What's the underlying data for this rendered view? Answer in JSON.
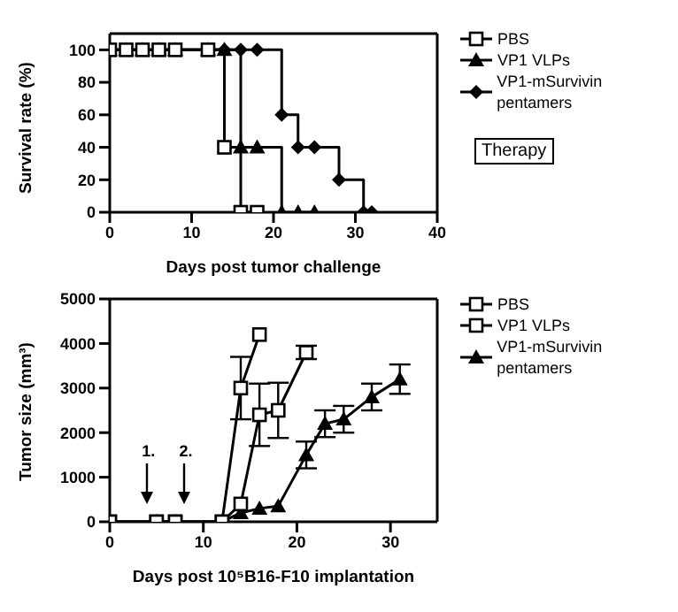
{
  "chart_data": [
    {
      "type": "step",
      "xlabel": "Days post tumor challenge",
      "ylabel": "Survival rate (%)",
      "xlim": [
        0,
        40
      ],
      "xticks": [
        0,
        10,
        20,
        30,
        40
      ],
      "ylim": [
        0,
        110
      ],
      "yticks": [
        0,
        20,
        40,
        60,
        80,
        100
      ],
      "legend": "top right",
      "annotations": [
        "Therapy"
      ],
      "series": [
        {
          "name": "PBS",
          "color": "#000000",
          "marker": "square",
          "x": [
            0,
            2,
            4,
            6,
            8,
            12,
            14,
            16,
            18
          ],
          "values": [
            100,
            100,
            100,
            100,
            100,
            100,
            40,
            0,
            0
          ]
        },
        {
          "name": "VP1 VLPs",
          "color": "#000000",
          "marker": "triangle",
          "x": [
            0,
            2,
            4,
            6,
            8,
            12,
            14,
            16,
            18,
            21,
            23,
            25
          ],
          "values": [
            100,
            100,
            100,
            100,
            100,
            100,
            100,
            40,
            40,
            0,
            0,
            0
          ]
        },
        {
          "name": "VP1-mSurvivin pentamers",
          "color": "#000000",
          "marker": "diamond",
          "x": [
            0,
            2,
            4,
            6,
            8,
            12,
            14,
            16,
            18,
            21,
            23,
            25,
            28,
            31,
            32
          ],
          "values": [
            100,
            100,
            100,
            100,
            100,
            100,
            100,
            100,
            100,
            60,
            40,
            40,
            20,
            0,
            0
          ]
        }
      ]
    },
    {
      "type": "line",
      "xlabel": "Days post 10⁵B16-F10 implantation",
      "ylabel": "Tumor size (mm³)",
      "xlim": [
        0,
        35
      ],
      "xticks": [
        0,
        10,
        20,
        30
      ],
      "ylim": [
        0,
        5000
      ],
      "yticks": [
        0,
        1000,
        2000,
        3000,
        4000,
        5000
      ],
      "legend": "top right",
      "annotations": [
        "1.",
        "2."
      ],
      "series": [
        {
          "name": "PBS",
          "color": "#000000",
          "marker": "square",
          "x": [
            0,
            5,
            7,
            12,
            14,
            16
          ],
          "values": [
            0,
            0,
            0,
            0,
            3000,
            4200
          ],
          "errors": [
            null,
            null,
            null,
            null,
            700,
            null
          ]
        },
        {
          "name": "VP1 VLPs",
          "color": "#000000",
          "marker": "square",
          "x": [
            0,
            5,
            7,
            12,
            14,
            16,
            18,
            21
          ],
          "values": [
            0,
            0,
            0,
            0,
            400,
            2400,
            2500,
            3800
          ],
          "errors": [
            null,
            null,
            null,
            null,
            null,
            700,
            620,
            150
          ]
        },
        {
          "name": "VP1-mSurvivin pentamers",
          "color": "#000000",
          "marker": "triangle",
          "x": [
            0,
            5,
            7,
            12,
            14,
            16,
            18,
            21,
            23,
            25,
            28,
            31
          ],
          "values": [
            0,
            0,
            0,
            0,
            200,
            300,
            350,
            1500,
            2200,
            2300,
            2800,
            3200
          ],
          "errors": [
            null,
            null,
            null,
            null,
            null,
            null,
            null,
            300,
            300,
            300,
            300,
            330
          ]
        }
      ]
    }
  ]
}
